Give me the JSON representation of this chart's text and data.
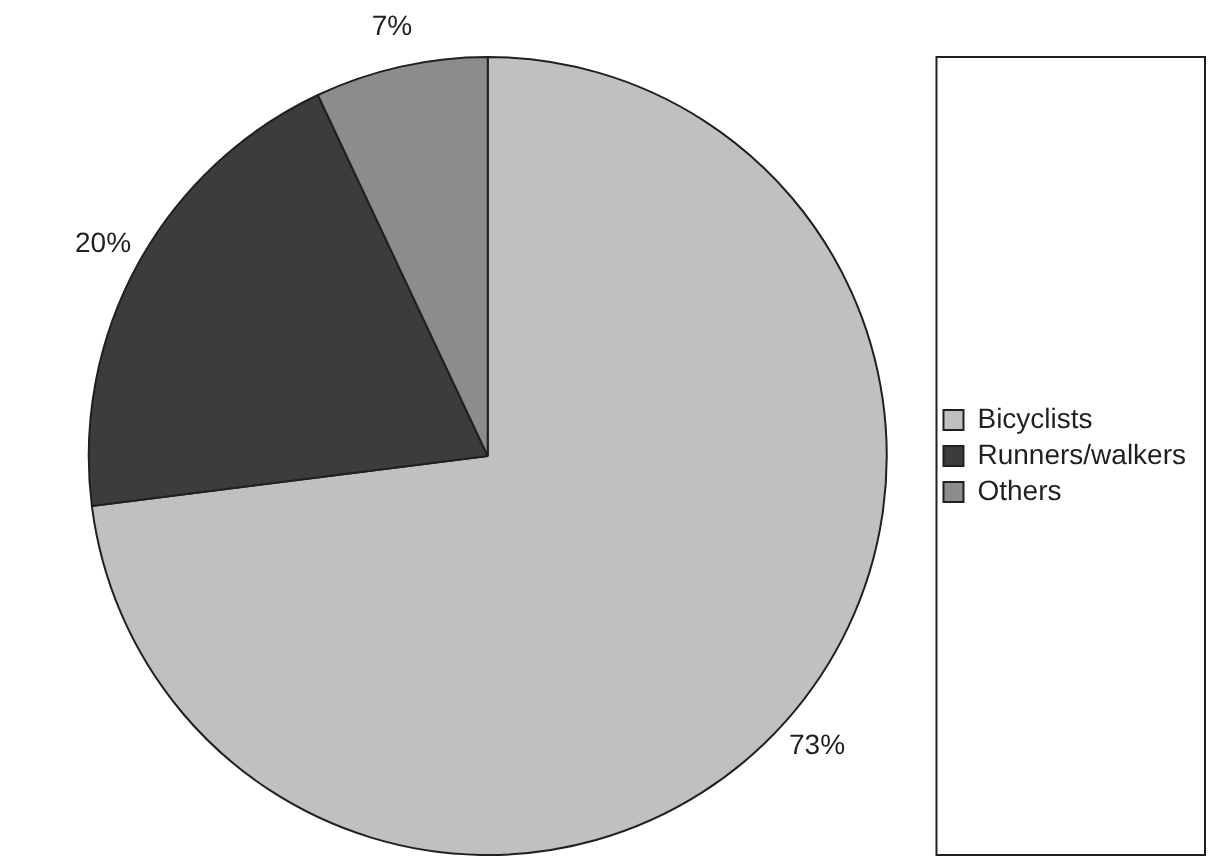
{
  "chart_data": {
    "type": "pie",
    "categories": [
      "Bicyclists",
      "Runners/walkers",
      "Others"
    ],
    "values": [
      73,
      20,
      7
    ],
    "colors": [
      "#c0c0c0",
      "#3c3c3c",
      "#8c8c8c"
    ],
    "value_labels": [
      "73%",
      "20%",
      "7%"
    ],
    "legend": "right"
  }
}
